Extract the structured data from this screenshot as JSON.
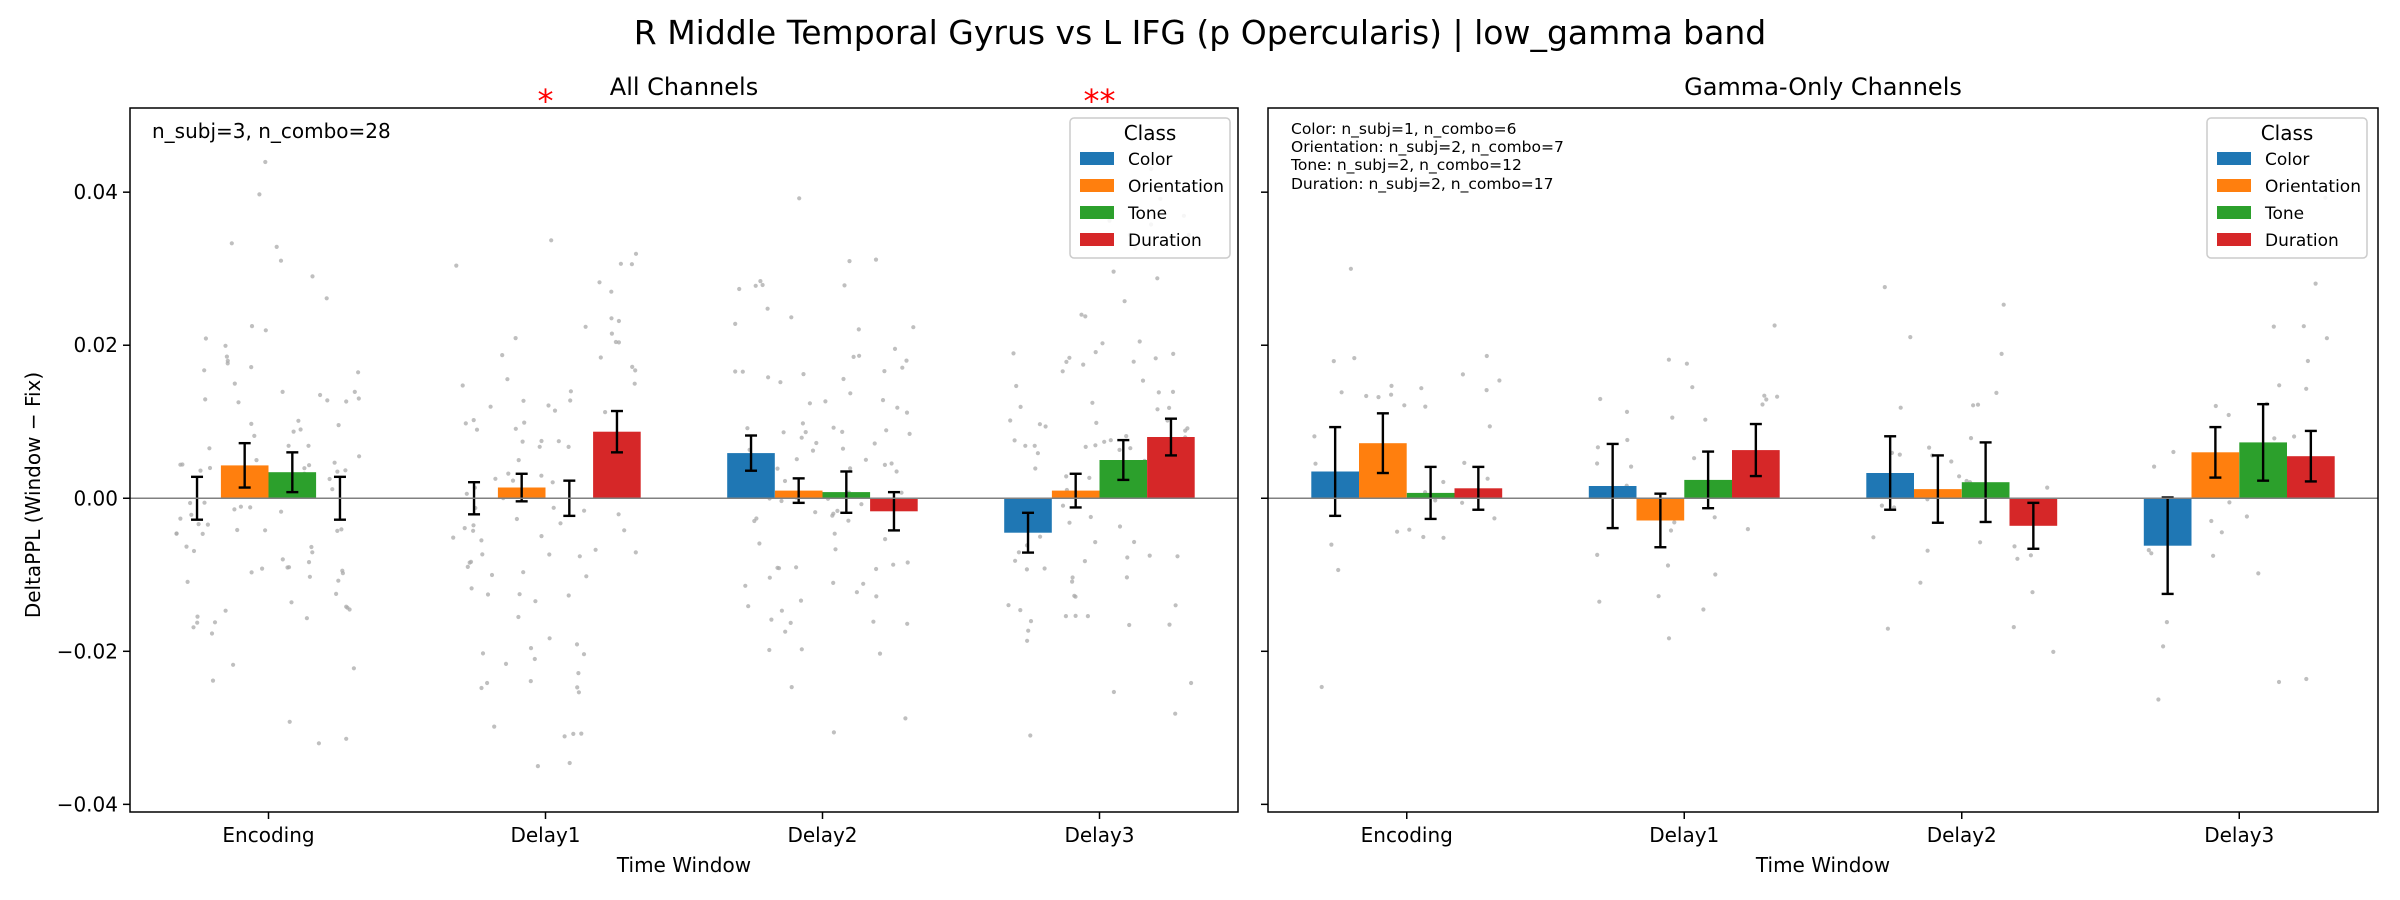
{
  "title": "R Middle Temporal Gyrus vs L IFG (p Opercularis)  |  low_gamma band",
  "colors": {
    "Color": "#1f77b4",
    "Orientation": "#ff7f0e",
    "Tone": "#2ca02c",
    "Duration": "#d62728",
    "significance": "#ff0000",
    "points": "#a9a9a9"
  },
  "chart_data": [
    {
      "type": "bar",
      "title": "All Channels",
      "xlabel": "Time Window",
      "ylabel": "DeltaPPL (Window − Fix)",
      "categories": [
        "Encoding",
        "Delay1",
        "Delay2",
        "Delay3"
      ],
      "ylim": [
        -0.041,
        0.051
      ],
      "yticks": [
        -0.04,
        -0.02,
        0.0,
        0.02,
        0.04
      ],
      "ytick_labels": [
        "−0.04",
        "−0.02",
        "0.00",
        "0.02",
        "0.04"
      ],
      "legend": {
        "title": "Class",
        "position": "top-right",
        "entries": [
          "Color",
          "Orientation",
          "Tone",
          "Duration"
        ]
      },
      "annotation": "n_subj=3, n_combo=28",
      "series": [
        {
          "name": "Color",
          "values": [
            0.0,
            0.0,
            0.0059,
            -0.0045
          ],
          "err": [
            0.0028,
            0.0021,
            0.0023,
            0.0026
          ]
        },
        {
          "name": "Orientation",
          "values": [
            0.0043,
            0.0014,
            0.001,
            0.001
          ],
          "err": [
            0.0029,
            0.0018,
            0.0016,
            0.0022
          ]
        },
        {
          "name": "Tone",
          "values": [
            0.0034,
            0.0,
            0.0008,
            0.005
          ],
          "err": [
            0.0026,
            0.0023,
            0.0027,
            0.0026
          ]
        },
        {
          "name": "Duration",
          "values": [
            0.0,
            0.0087,
            -0.0017,
            0.008
          ],
          "err": [
            0.0028,
            0.0027,
            0.0025,
            0.0024
          ]
        }
      ],
      "significance": [
        {
          "category": "Delay1",
          "label": "*"
        },
        {
          "category": "Delay3",
          "label": "**"
        }
      ]
    },
    {
      "type": "bar",
      "title": "Gamma-Only Channels",
      "xlabel": "Time Window",
      "ylabel": "",
      "categories": [
        "Encoding",
        "Delay1",
        "Delay2",
        "Delay3"
      ],
      "ylim": [
        -0.041,
        0.051
      ],
      "yticks": [
        -0.04,
        -0.02,
        0.0,
        0.02,
        0.04
      ],
      "legend": {
        "title": "Class",
        "position": "top-right",
        "entries": [
          "Color",
          "Orientation",
          "Tone",
          "Duration"
        ]
      },
      "annotation_lines": [
        "Color: n_subj=1, n_combo=6",
        "Orientation: n_subj=2, n_combo=7",
        "Tone: n_subj=2, n_combo=12",
        "Duration: n_subj=2, n_combo=17"
      ],
      "series": [
        {
          "name": "Color",
          "values": [
            0.0035,
            0.0016,
            0.0033,
            -0.0062
          ],
          "err": [
            0.0058,
            0.0055,
            0.0048,
            0.0063
          ]
        },
        {
          "name": "Orientation",
          "values": [
            0.0072,
            -0.0029,
            0.0012,
            0.006
          ],
          "err": [
            0.0039,
            0.0035,
            0.0044,
            0.0033
          ]
        },
        {
          "name": "Tone",
          "values": [
            0.0007,
            0.0024,
            0.0021,
            0.0073
          ],
          "err": [
            0.0034,
            0.0037,
            0.0052,
            0.005
          ]
        },
        {
          "name": "Duration",
          "values": [
            0.0013,
            0.0063,
            -0.0036,
            0.0055
          ],
          "err": [
            0.0028,
            0.0034,
            0.003,
            0.0033
          ]
        }
      ]
    }
  ]
}
